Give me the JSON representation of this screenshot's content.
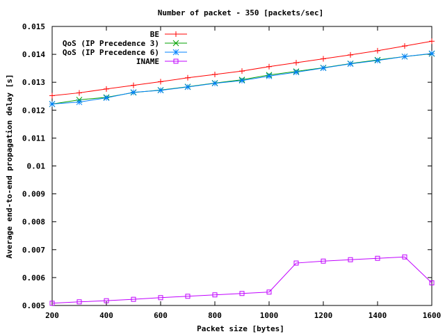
{
  "chart_data": {
    "type": "line",
    "title": "Number of packet - 350 [packets/sec]",
    "xlabel": "Packet size [bytes]",
    "ylabel": "Average end-to-end propagation delay [s]",
    "xlim": [
      200,
      1600
    ],
    "ylim": [
      0.005,
      0.015
    ],
    "xticks": [
      "200",
      "400",
      "600",
      "800",
      "1000",
      "1200",
      "1400",
      "1600"
    ],
    "yticks": [
      "0.005",
      "0.006",
      "0.007",
      "0.008",
      "0.009",
      "0.01",
      "0.011",
      "0.012",
      "0.013",
      "0.014",
      "0.015"
    ],
    "x": [
      200,
      300,
      400,
      500,
      600,
      700,
      800,
      900,
      1000,
      1100,
      1200,
      1300,
      1400,
      1500,
      1600
    ],
    "grid": false,
    "legend_position": "top-right",
    "series": [
      {
        "name": "BE",
        "color": "#ff0000",
        "marker": "plus",
        "values": [
          0.01252,
          0.01262,
          0.01276,
          0.01289,
          0.01302,
          0.01316,
          0.01328,
          0.0134,
          0.01356,
          0.0137,
          0.01384,
          0.01398,
          0.01413,
          0.0143,
          0.01447
        ]
      },
      {
        "name": "QoS (IP Precedence 3)",
        "color": "#00a000",
        "marker": "cross",
        "values": [
          0.01222,
          0.01237,
          0.01246,
          0.01263,
          0.01272,
          0.01284,
          0.01297,
          0.01309,
          0.01326,
          0.01339,
          0.01352,
          0.01367,
          0.0138,
          0.01392,
          0.01402
        ]
      },
      {
        "name": "QoS (IP Precedence 6)",
        "color": "#0080ff",
        "marker": "star",
        "values": [
          0.01222,
          0.01229,
          0.01244,
          0.01264,
          0.01271,
          0.01283,
          0.01296,
          0.01306,
          0.01322,
          0.01336,
          0.01351,
          0.01366,
          0.01378,
          0.01392,
          0.01403
        ]
      },
      {
        "name": "INAME",
        "color": "#c000ff",
        "marker": "square",
        "values": [
          0.00508,
          0.00513,
          0.00517,
          0.00522,
          0.00528,
          0.00533,
          0.00538,
          0.00543,
          0.00548,
          0.00652,
          0.00659,
          0.00664,
          0.00669,
          0.00674,
          0.00581
        ]
      }
    ]
  }
}
